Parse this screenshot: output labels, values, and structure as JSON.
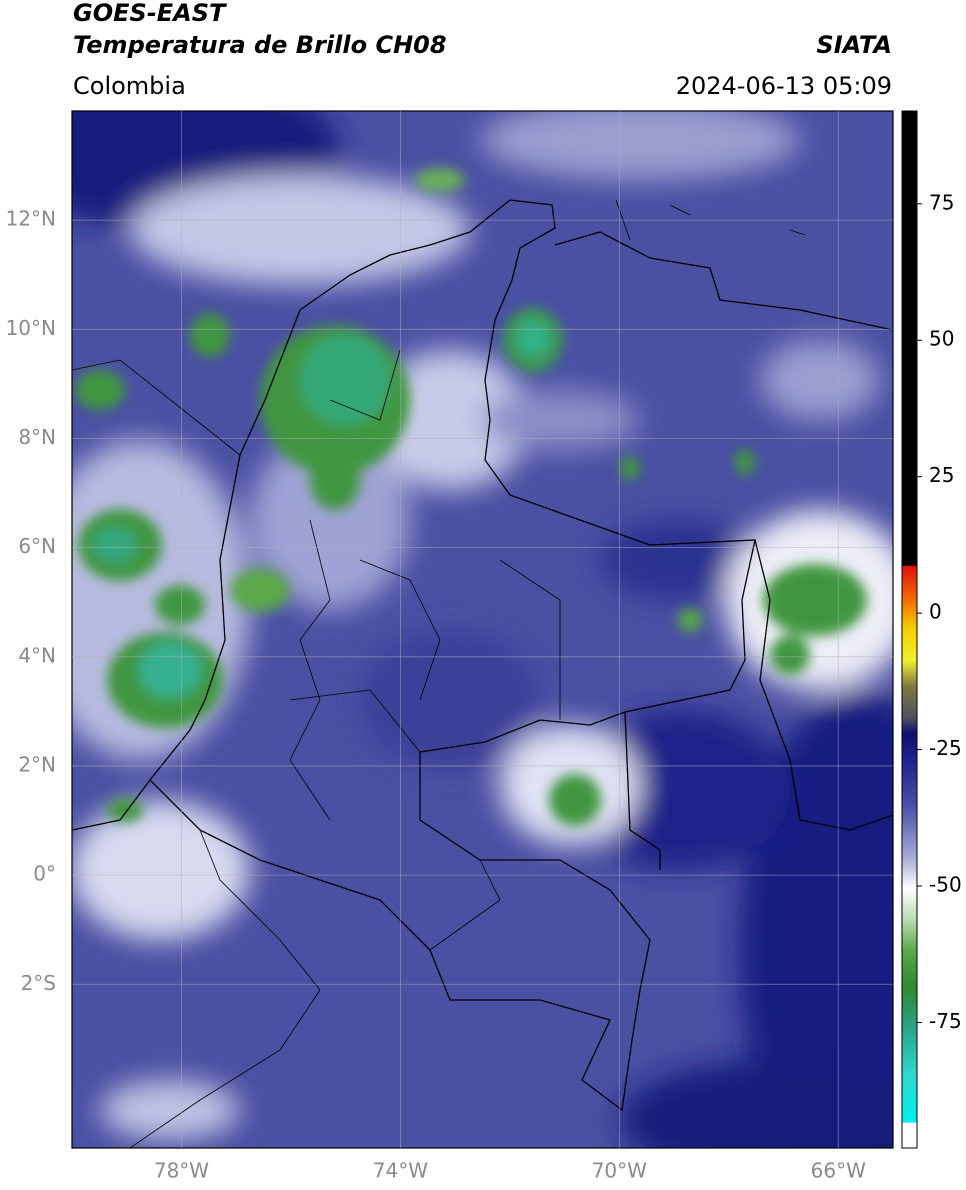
{
  "header": {
    "satellite": "GOES-EAST",
    "product": "Temperatura de Brillo CH08",
    "region": "Colombia",
    "source": "SIATA",
    "datetime": "2024-06-13 05:09"
  },
  "map": {
    "lon_range": [
      -80,
      -65
    ],
    "lat_range": [
      -5,
      14
    ],
    "lat_ticks": [
      {
        "value": 12,
        "label": "12°N"
      },
      {
        "value": 10,
        "label": "10°N"
      },
      {
        "value": 8,
        "label": "8°N"
      },
      {
        "value": 6,
        "label": "6°N"
      },
      {
        "value": 4,
        "label": "4°N"
      },
      {
        "value": 2,
        "label": "2°N"
      },
      {
        "value": 0,
        "label": "0°"
      },
      {
        "value": -2,
        "label": "2°S"
      }
    ],
    "lon_ticks": [
      {
        "value": -78,
        "label": "78°W"
      },
      {
        "value": -74,
        "label": "74°W"
      },
      {
        "value": -70,
        "label": "70°W"
      },
      {
        "value": -66,
        "label": "66°W"
      }
    ]
  },
  "colorbar": {
    "range": [
      -98,
      92
    ],
    "ticks": [
      75,
      50,
      25,
      0,
      -25,
      -50,
      -75
    ]
  }
}
